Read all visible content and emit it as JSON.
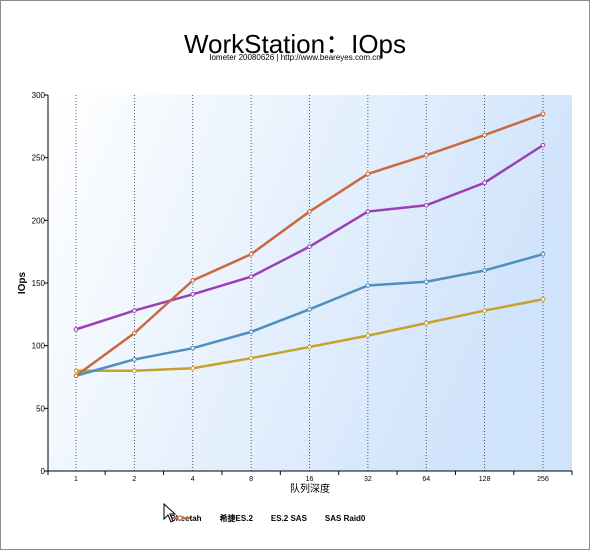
{
  "chart_data": {
    "type": "line",
    "title": "WorkStation：IOps",
    "subtitle": "Iometer 20080626 | http://www.beareyes.com.cn",
    "xlabel": "队列深度",
    "ylabel": "IOps",
    "categories": [
      "1",
      "2",
      "4",
      "8",
      "16",
      "32",
      "64",
      "128",
      "256"
    ],
    "ylim": [
      0,
      300
    ],
    "yticks": [
      0,
      50,
      100,
      150,
      200,
      250,
      300
    ],
    "grid": "vertical dotted",
    "legend_position": "bottom",
    "series": [
      {
        "name": "Cheetah",
        "color": "#9b3fb5",
        "values": [
          113,
          128,
          141,
          155,
          179,
          207,
          212,
          230,
          260
        ]
      },
      {
        "name": "希捷ES.2",
        "color": "#c8a030",
        "values": [
          80,
          80,
          82,
          90,
          99,
          108,
          118,
          128,
          137
        ]
      },
      {
        "name": "ES.2 SAS",
        "color": "#4f8fbf",
        "values": [
          76,
          89,
          98,
          111,
          129,
          148,
          151,
          160,
          173
        ]
      },
      {
        "name": "SAS Raid0",
        "color": "#c86a3c",
        "values": [
          76,
          110,
          152,
          173,
          207,
          237,
          252,
          268,
          285
        ]
      }
    ]
  }
}
